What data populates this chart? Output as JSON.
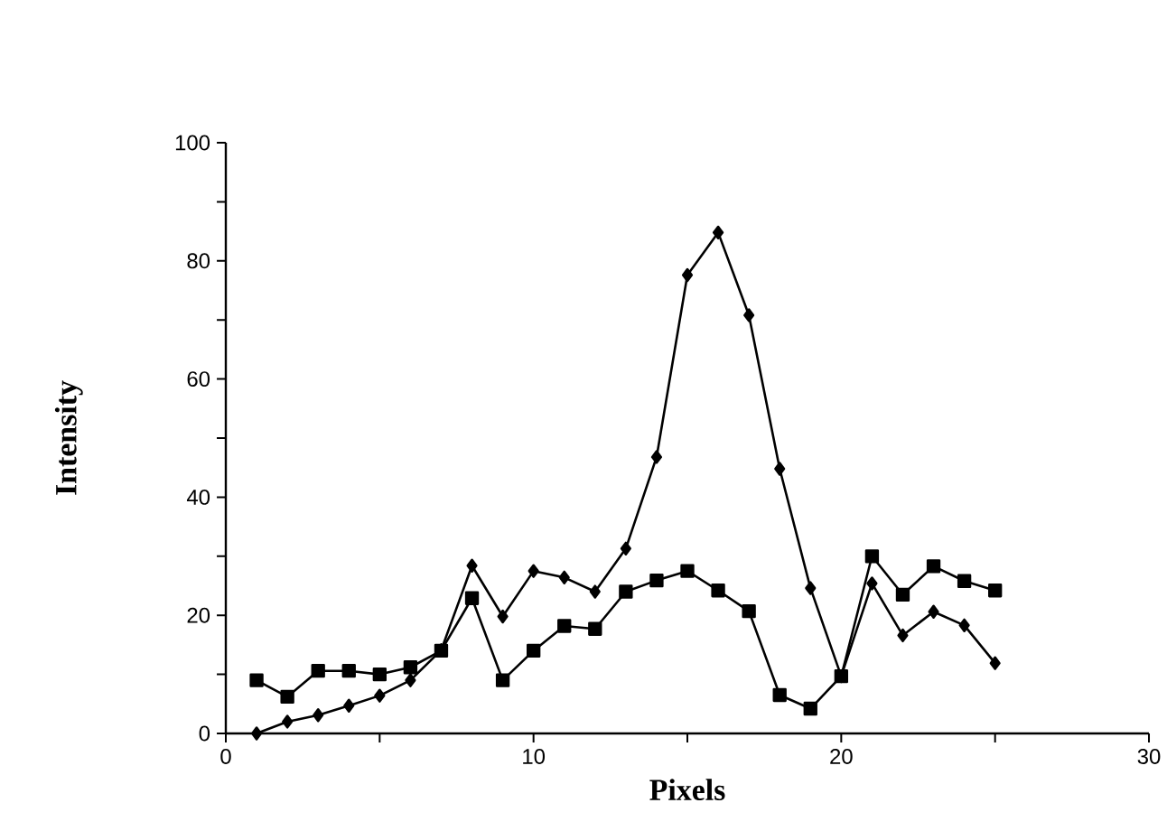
{
  "chart_data": {
    "type": "line",
    "xlabel": "Pixels",
    "ylabel": "Intensity",
    "x": [
      1,
      2,
      3,
      4,
      5,
      6,
      7,
      8,
      9,
      10,
      11,
      12,
      13,
      14,
      15,
      16,
      17,
      18,
      19,
      20,
      21,
      22,
      23,
      24,
      25
    ],
    "series": [
      {
        "color": "#000000",
        "marker": "diamond",
        "values": [
          0,
          2,
          3.1,
          4.7,
          6.4,
          9,
          14.1,
          28.4,
          19.8,
          27.5,
          26.4,
          24,
          31.3,
          46.8,
          77.6,
          84.8,
          70.8,
          44.8,
          24.6,
          9.7,
          25.4,
          16.6,
          20.6,
          18.3,
          11.9
        ]
      },
      {
        "color": "#000000",
        "marker": "square",
        "values": [
          9,
          6.2,
          10.6,
          10.6,
          10,
          11.2,
          14,
          22.9,
          9,
          14,
          18.2,
          17.7,
          24,
          25.9,
          27.5,
          24.2,
          20.7,
          6.5,
          4.2,
          9.7,
          30,
          23.5,
          28.3,
          25.8,
          24.2
        ]
      }
    ],
    "xlim": [
      0,
      30
    ],
    "xticks": [
      0,
      {
        "value": 5,
        "label": null
      },
      10,
      {
        "value": 15,
        "label": null
      },
      20,
      {
        "value": 25,
        "label": null
      },
      30
    ],
    "ylim": [
      0,
      100
    ],
    "yticks": [
      0,
      {
        "value": 10,
        "label": null
      },
      20,
      {
        "value": 30,
        "label": null
      },
      40,
      {
        "value": 50,
        "label": null
      },
      60,
      {
        "value": 70,
        "label": null
      },
      80,
      {
        "value": 90,
        "label": null
      },
      100
    ],
    "grid": false,
    "line_style": "solid"
  }
}
